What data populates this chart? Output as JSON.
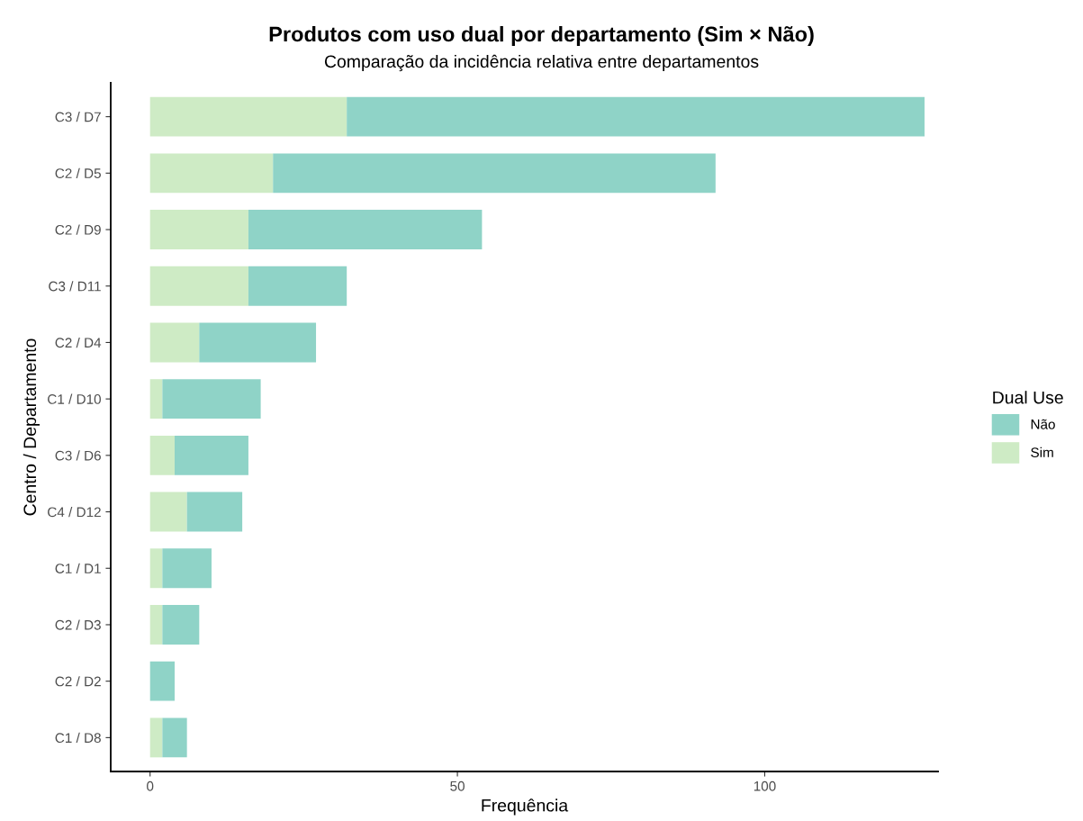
{
  "chart_data": {
    "type": "bar",
    "orientation": "horizontal",
    "stacked": true,
    "title": "Produtos com uso dual por departamento (Sim × Não)",
    "subtitle": "Comparação da incidência relativa entre departamentos",
    "xlabel": "Frequência",
    "ylabel": "Centro / Departamento",
    "legend_title": "Dual Use",
    "legend": "right",
    "grid": false,
    "categories": [
      "C3 / D7",
      "C2 / D5",
      "C2 / D9",
      "C3 / D11",
      "C2 / D4",
      "C1 / D10",
      "C3 / D6",
      "C4 / D12",
      "C1 / D1",
      "C2 / D3",
      "C2 / D2",
      "C1 / D8"
    ],
    "series": [
      {
        "name": "Sim",
        "color": "#ceebc5",
        "values": [
          32,
          20,
          16,
          16,
          8,
          2,
          4,
          6,
          2,
          2,
          0,
          2
        ]
      },
      {
        "name": "Não",
        "color": "#8fd3c7",
        "values": [
          94,
          72,
          38,
          16,
          19,
          16,
          12,
          9,
          8,
          6,
          4,
          4
        ]
      }
    ],
    "xlim": [
      -6.4,
      128.2
    ],
    "xticks": [
      0,
      50,
      100
    ]
  }
}
